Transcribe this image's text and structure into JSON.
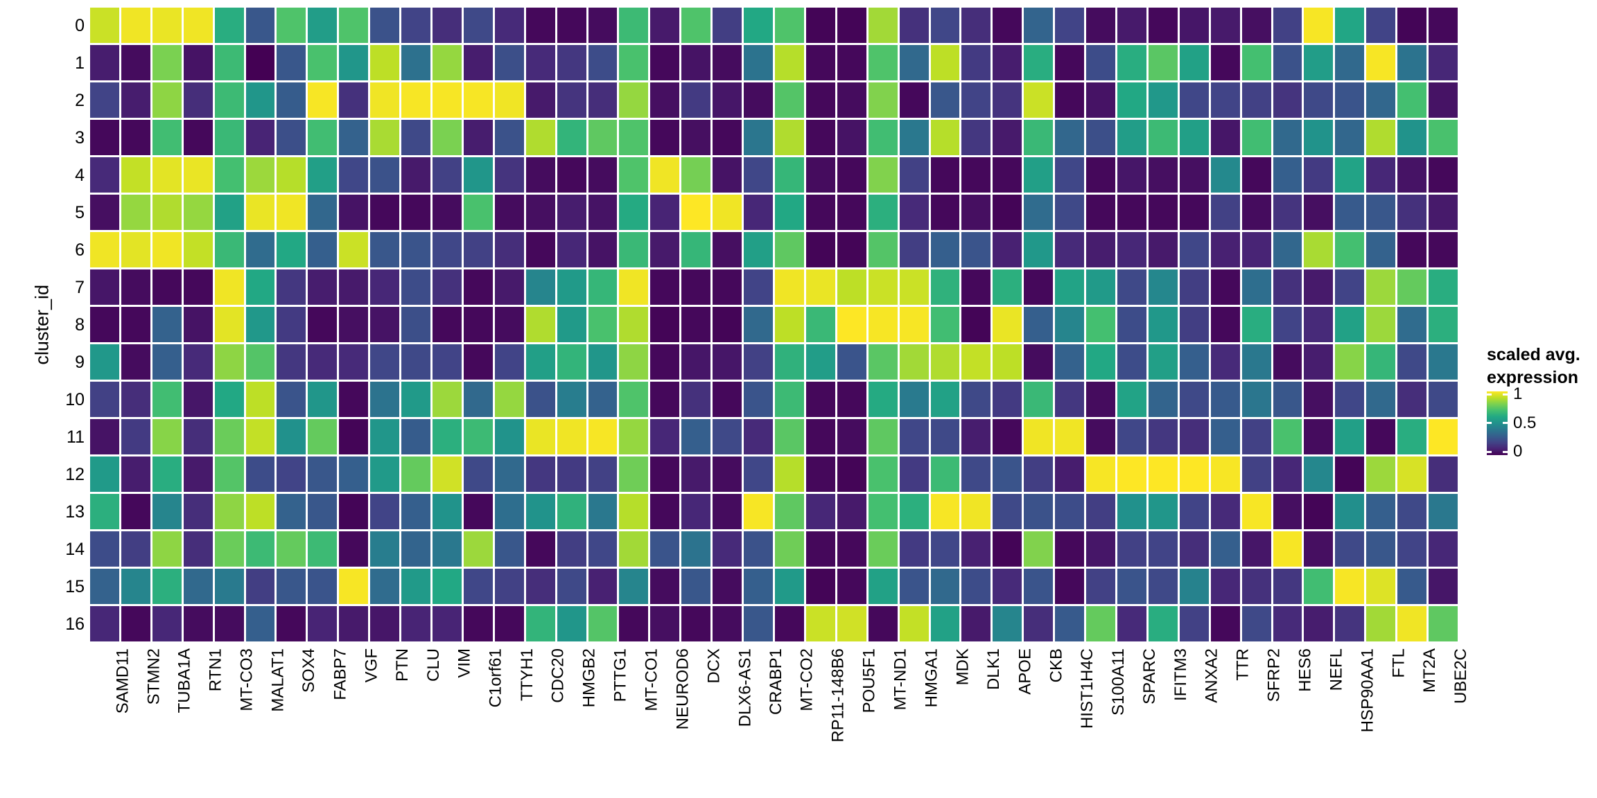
{
  "figure": {
    "background_color": "#ffffff",
    "text_color": "#000000"
  },
  "chart_data": {
    "type": "heatmap",
    "title": "",
    "xlabel": "",
    "y_axis_label": "cluster_id",
    "x_categories": [
      "SAMD11",
      "STMN2",
      "TUBA1A",
      "RTN1",
      "MT-CO3",
      "MALAT1",
      "SOX4",
      "FABP7",
      "VGF",
      "PTN",
      "CLU",
      "VIM",
      "C1orf61",
      "TTYH1",
      "CDC20",
      "HMGB2",
      "PTTG1",
      "MT-CO1",
      "NEUROD6",
      "DCX",
      "DLX6-AS1",
      "CRABP1",
      "MT-CO2",
      "RP11-148B6",
      "POU5F1",
      "MT-ND1",
      "HMGA1",
      "MDK",
      "DLK1",
      "APOE",
      "CKB",
      "HIST1H4C",
      "S100A11",
      "SPARC",
      "IFITM3",
      "ANXA2",
      "TTR",
      "SFRP2",
      "HES6",
      "NEFL",
      "HSP90AA1",
      "FTL",
      "MT2A",
      "UBE2C"
    ],
    "y_categories": [
      "0",
      "1",
      "2",
      "3",
      "4",
      "5",
      "6",
      "7",
      "8",
      "9",
      "10",
      "11",
      "12",
      "13",
      "14",
      "15",
      "16"
    ],
    "legend": {
      "title_lines": [
        "scaled avg.",
        "expression"
      ],
      "ticks": [
        {
          "label": "1",
          "value": 1
        },
        {
          "label": "0.5",
          "value": 0.5
        },
        {
          "label": "0",
          "value": 0
        }
      ],
      "position": "right",
      "range": [
        0,
        1
      ]
    },
    "colormap": "viridis",
    "colormap_stops": [
      "#440154",
      "#482475",
      "#414487",
      "#355f8d",
      "#2a788e",
      "#21918c",
      "#22a884",
      "#44bf70",
      "#7ad151",
      "#bddf26",
      "#fde725"
    ],
    "values": [
      [
        0.92,
        0.98,
        0.97,
        0.98,
        0.62,
        0.27,
        0.72,
        0.55,
        0.72,
        0.25,
        0.2,
        0.13,
        0.22,
        0.12,
        0.02,
        0.02,
        0.03,
        0.68,
        0.07,
        0.72,
        0.18,
        0.6,
        0.72,
        0.01,
        0.01,
        0.86,
        0.14,
        0.21,
        0.13,
        0.02,
        0.32,
        0.2,
        0.03,
        0.07,
        0.02,
        0.06,
        0.07,
        0.04,
        0.19,
        0.99,
        0.59,
        0.2,
        0.01,
        0.02
      ],
      [
        0.08,
        0.03,
        0.8,
        0.05,
        0.68,
        0.0,
        0.27,
        0.71,
        0.52,
        0.9,
        0.37,
        0.84,
        0.08,
        0.24,
        0.12,
        0.16,
        0.23,
        0.71,
        0.02,
        0.05,
        0.03,
        0.38,
        0.89,
        0.02,
        0.02,
        0.72,
        0.34,
        0.9,
        0.17,
        0.08,
        0.62,
        0.02,
        0.23,
        0.62,
        0.74,
        0.57,
        0.02,
        0.7,
        0.25,
        0.55,
        0.34,
        0.99,
        0.38,
        0.11
      ],
      [
        0.2,
        0.08,
        0.83,
        0.13,
        0.68,
        0.52,
        0.29,
        0.99,
        0.14,
        0.98,
        0.99,
        0.99,
        0.99,
        0.98,
        0.07,
        0.15,
        0.13,
        0.84,
        0.04,
        0.17,
        0.06,
        0.03,
        0.73,
        0.02,
        0.03,
        0.81,
        0.02,
        0.27,
        0.2,
        0.15,
        0.92,
        0.02,
        0.05,
        0.6,
        0.53,
        0.21,
        0.2,
        0.19,
        0.15,
        0.22,
        0.26,
        0.33,
        0.7,
        0.05
      ],
      [
        0.02,
        0.02,
        0.69,
        0.02,
        0.67,
        0.1,
        0.24,
        0.69,
        0.31,
        0.87,
        0.22,
        0.8,
        0.08,
        0.25,
        0.88,
        0.65,
        0.75,
        0.72,
        0.02,
        0.04,
        0.02,
        0.39,
        0.88,
        0.02,
        0.05,
        0.69,
        0.4,
        0.89,
        0.16,
        0.07,
        0.67,
        0.33,
        0.24,
        0.55,
        0.68,
        0.56,
        0.06,
        0.69,
        0.34,
        0.51,
        0.33,
        0.88,
        0.51,
        0.71
      ],
      [
        0.12,
        0.91,
        0.96,
        0.97,
        0.7,
        0.85,
        0.89,
        0.56,
        0.21,
        0.25,
        0.07,
        0.19,
        0.52,
        0.15,
        0.03,
        0.02,
        0.03,
        0.72,
        0.98,
        0.79,
        0.05,
        0.21,
        0.66,
        0.03,
        0.02,
        0.81,
        0.19,
        0.02,
        0.02,
        0.02,
        0.56,
        0.21,
        0.02,
        0.06,
        0.04,
        0.04,
        0.47,
        0.02,
        0.3,
        0.17,
        0.58,
        0.11,
        0.05,
        0.02
      ],
      [
        0.04,
        0.84,
        0.88,
        0.84,
        0.57,
        0.97,
        0.98,
        0.33,
        0.05,
        0.02,
        0.02,
        0.03,
        0.71,
        0.03,
        0.04,
        0.08,
        0.05,
        0.61,
        0.1,
        1.0,
        0.98,
        0.11,
        0.6,
        0.02,
        0.02,
        0.63,
        0.12,
        0.02,
        0.04,
        0.01,
        0.35,
        0.22,
        0.02,
        0.02,
        0.02,
        0.02,
        0.19,
        0.03,
        0.15,
        0.04,
        0.28,
        0.27,
        0.14,
        0.07
      ],
      [
        0.98,
        0.96,
        0.98,
        0.91,
        0.67,
        0.35,
        0.6,
        0.3,
        0.92,
        0.27,
        0.26,
        0.21,
        0.19,
        0.13,
        0.02,
        0.11,
        0.05,
        0.67,
        0.07,
        0.66,
        0.04,
        0.56,
        0.75,
        0.01,
        0.01,
        0.73,
        0.18,
        0.3,
        0.26,
        0.09,
        0.53,
        0.12,
        0.08,
        0.11,
        0.07,
        0.21,
        0.09,
        0.1,
        0.33,
        0.87,
        0.7,
        0.31,
        0.02,
        0.02
      ],
      [
        0.06,
        0.03,
        0.02,
        0.02,
        0.98,
        0.6,
        0.16,
        0.08,
        0.07,
        0.11,
        0.23,
        0.14,
        0.02,
        0.07,
        0.45,
        0.54,
        0.66,
        0.98,
        0.02,
        0.02,
        0.02,
        0.2,
        0.98,
        0.97,
        0.9,
        0.92,
        0.92,
        0.64,
        0.02,
        0.63,
        0.02,
        0.58,
        0.54,
        0.22,
        0.46,
        0.18,
        0.02,
        0.36,
        0.14,
        0.07,
        0.2,
        0.85,
        0.76,
        0.62
      ],
      [
        0.02,
        0.02,
        0.31,
        0.05,
        0.96,
        0.53,
        0.17,
        0.02,
        0.04,
        0.05,
        0.24,
        0.02,
        0.02,
        0.03,
        0.88,
        0.54,
        0.71,
        0.88,
        0.01,
        0.02,
        0.01,
        0.34,
        0.9,
        0.67,
        1.0,
        0.99,
        0.99,
        0.69,
        0.01,
        0.97,
        0.3,
        0.45,
        0.7,
        0.23,
        0.53,
        0.18,
        0.02,
        0.62,
        0.2,
        0.12,
        0.57,
        0.85,
        0.35,
        0.63
      ],
      [
        0.53,
        0.03,
        0.3,
        0.12,
        0.83,
        0.73,
        0.16,
        0.12,
        0.12,
        0.21,
        0.22,
        0.2,
        0.02,
        0.2,
        0.56,
        0.65,
        0.52,
        0.83,
        0.02,
        0.06,
        0.06,
        0.19,
        0.64,
        0.55,
        0.26,
        0.74,
        0.86,
        0.88,
        0.91,
        0.9,
        0.03,
        0.31,
        0.6,
        0.23,
        0.56,
        0.3,
        0.12,
        0.4,
        0.03,
        0.08,
        0.82,
        0.66,
        0.22,
        0.4
      ],
      [
        0.19,
        0.13,
        0.69,
        0.06,
        0.6,
        0.9,
        0.26,
        0.52,
        0.02,
        0.38,
        0.54,
        0.85,
        0.34,
        0.84,
        0.25,
        0.42,
        0.31,
        0.72,
        0.02,
        0.14,
        0.02,
        0.26,
        0.68,
        0.02,
        0.02,
        0.61,
        0.41,
        0.57,
        0.22,
        0.17,
        0.67,
        0.16,
        0.03,
        0.58,
        0.32,
        0.22,
        0.28,
        0.39,
        0.27,
        0.04,
        0.21,
        0.34,
        0.13,
        0.22
      ],
      [
        0.05,
        0.17,
        0.82,
        0.13,
        0.77,
        0.91,
        0.5,
        0.76,
        0.01,
        0.52,
        0.29,
        0.63,
        0.68,
        0.51,
        0.97,
        0.98,
        0.99,
        0.84,
        0.11,
        0.3,
        0.22,
        0.12,
        0.74,
        0.02,
        0.03,
        0.75,
        0.21,
        0.22,
        0.08,
        0.02,
        0.98,
        0.98,
        0.03,
        0.21,
        0.16,
        0.13,
        0.3,
        0.19,
        0.71,
        0.03,
        0.56,
        0.02,
        0.62,
        1.0
      ],
      [
        0.54,
        0.08,
        0.62,
        0.07,
        0.73,
        0.23,
        0.2,
        0.27,
        0.3,
        0.54,
        0.76,
        0.93,
        0.22,
        0.34,
        0.16,
        0.17,
        0.19,
        0.78,
        0.02,
        0.07,
        0.03,
        0.21,
        0.89,
        0.02,
        0.01,
        0.71,
        0.17,
        0.68,
        0.22,
        0.26,
        0.18,
        0.08,
        0.99,
        1.0,
        1.0,
        1.0,
        0.99,
        0.19,
        0.11,
        0.46,
        0.01,
        0.85,
        0.94,
        0.13
      ],
      [
        0.63,
        0.02,
        0.45,
        0.13,
        0.83,
        0.9,
        0.31,
        0.27,
        0.01,
        0.2,
        0.3,
        0.51,
        0.02,
        0.36,
        0.51,
        0.64,
        0.4,
        0.89,
        0.02,
        0.11,
        0.03,
        0.99,
        0.75,
        0.11,
        0.07,
        0.7,
        0.63,
        0.99,
        0.98,
        0.22,
        0.25,
        0.23,
        0.18,
        0.5,
        0.52,
        0.2,
        0.12,
        0.99,
        0.04,
        0.01,
        0.49,
        0.3,
        0.22,
        0.4
      ],
      [
        0.23,
        0.18,
        0.83,
        0.13,
        0.77,
        0.68,
        0.76,
        0.68,
        0.02,
        0.42,
        0.32,
        0.4,
        0.85,
        0.27,
        0.02,
        0.18,
        0.21,
        0.86,
        0.26,
        0.38,
        0.12,
        0.25,
        0.78,
        0.02,
        0.02,
        0.77,
        0.17,
        0.21,
        0.09,
        0.01,
        0.81,
        0.02,
        0.06,
        0.19,
        0.2,
        0.13,
        0.3,
        0.06,
        0.99,
        0.04,
        0.22,
        0.27,
        0.2,
        0.11
      ],
      [
        0.31,
        0.45,
        0.63,
        0.34,
        0.41,
        0.18,
        0.27,
        0.26,
        0.99,
        0.35,
        0.54,
        0.6,
        0.21,
        0.19,
        0.13,
        0.22,
        0.09,
        0.45,
        0.03,
        0.27,
        0.03,
        0.3,
        0.54,
        0.01,
        0.02,
        0.57,
        0.26,
        0.34,
        0.23,
        0.12,
        0.26,
        0.02,
        0.19,
        0.26,
        0.22,
        0.44,
        0.11,
        0.14,
        0.16,
        0.69,
        0.99,
        0.95,
        0.28,
        0.06
      ],
      [
        0.11,
        0.02,
        0.11,
        0.03,
        0.03,
        0.3,
        0.02,
        0.1,
        0.07,
        0.06,
        0.1,
        0.1,
        0.02,
        0.02,
        0.65,
        0.52,
        0.73,
        0.02,
        0.04,
        0.02,
        0.03,
        0.27,
        0.02,
        0.92,
        0.93,
        0.02,
        0.91,
        0.57,
        0.07,
        0.45,
        0.13,
        0.28,
        0.76,
        0.12,
        0.62,
        0.19,
        0.02,
        0.22,
        0.12,
        0.08,
        0.15,
        0.86,
        0.98,
        0.75
      ]
    ]
  }
}
